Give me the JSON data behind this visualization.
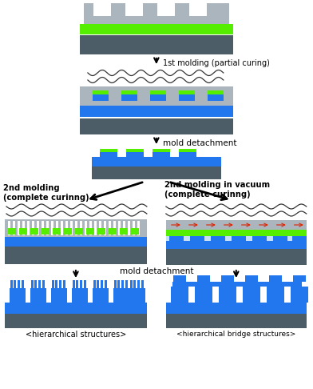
{
  "colors": {
    "light_gray": "#aab5be",
    "dark_gray": "#4d5d68",
    "green": "#55ee00",
    "blue": "#2277ee",
    "white": "#ffffff",
    "black": "#111111",
    "red": "#dd2200",
    "pale_blue": "#c8dff8",
    "bg": "#ffffff"
  },
  "figsize": [
    3.92,
    4.86
  ],
  "dpi": 100,
  "title1": "1st molding (partial curing)",
  "title2": "mold detachment",
  "title3l": "2nd molding\n(complete curinng)",
  "title3r": "2nd molding in vacuum\n(complete curinng)",
  "title4": "mold detachment",
  "title5l": "<hierarchical structures>",
  "title5r": "<hierarchical bridge structures>"
}
